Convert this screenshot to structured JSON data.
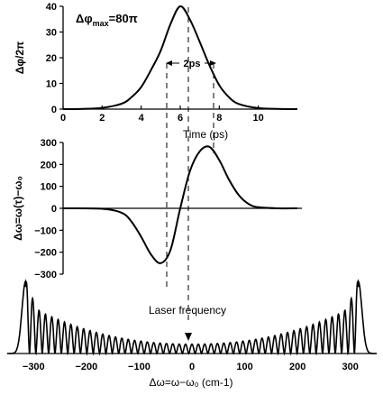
{
  "chart_data": [
    {
      "type": "line",
      "panel": "phase",
      "ylabel": "Δφ/2π",
      "xlabel": "Time (ps)",
      "annotation": "Δφ_max = 80π",
      "annotation_main": "Δφ",
      "annotation_sub": "max",
      "annotation_rest": "=80π",
      "width_label": "2ps",
      "xlim": [
        0,
        12
      ],
      "ylim": [
        0,
        40
      ],
      "xticks": [
        0,
        2,
        4,
        6,
        8,
        10
      ],
      "yticks": [
        0,
        10,
        20,
        30,
        40
      ],
      "series": [
        {
          "x": [
            0,
            1,
            2,
            3,
            3.5,
            4,
            4.5,
            5,
            5.5,
            6,
            6.5,
            7,
            7.5,
            8,
            8.5,
            9,
            10,
            11,
            12
          ],
          "y": [
            0,
            0.1,
            0.5,
            2.1,
            4.6,
            8.6,
            15.2,
            22.7,
            33.1,
            40,
            34.8,
            26.1,
            17.0,
            9.3,
            4.6,
            2.0,
            0.4,
            0.1,
            0
          ]
        }
      ]
    },
    {
      "type": "line",
      "panel": "frequency",
      "ylabel": "Δω=ω(τ)−ω₀",
      "xlim": [
        0,
        12
      ],
      "ylim": [
        -300,
        300
      ],
      "yticks": [
        300,
        200,
        100,
        0,
        -100,
        -200,
        -300
      ],
      "series": [
        {
          "x": [
            0,
            2,
            3,
            3.5,
            4,
            4.5,
            5,
            5.5,
            6,
            6.5,
            7,
            7.5,
            8,
            8.5,
            9,
            9.5,
            10,
            11,
            12
          ],
          "y": [
            0,
            -2,
            -20,
            -60,
            -130,
            -210,
            -250,
            -190,
            0,
            170,
            260,
            280,
            220,
            130,
            60,
            20,
            5,
            0,
            0
          ]
        }
      ]
    },
    {
      "type": "line",
      "panel": "spectrum",
      "xlabel": "Δω=ω−ω₀ (cm-1)",
      "xlim": [
        -350,
        350
      ],
      "xticks": [
        -300,
        -200,
        -100,
        0,
        100,
        200,
        300
      ],
      "annotation": "Laser frequency",
      "fringe_count": 58
    }
  ]
}
